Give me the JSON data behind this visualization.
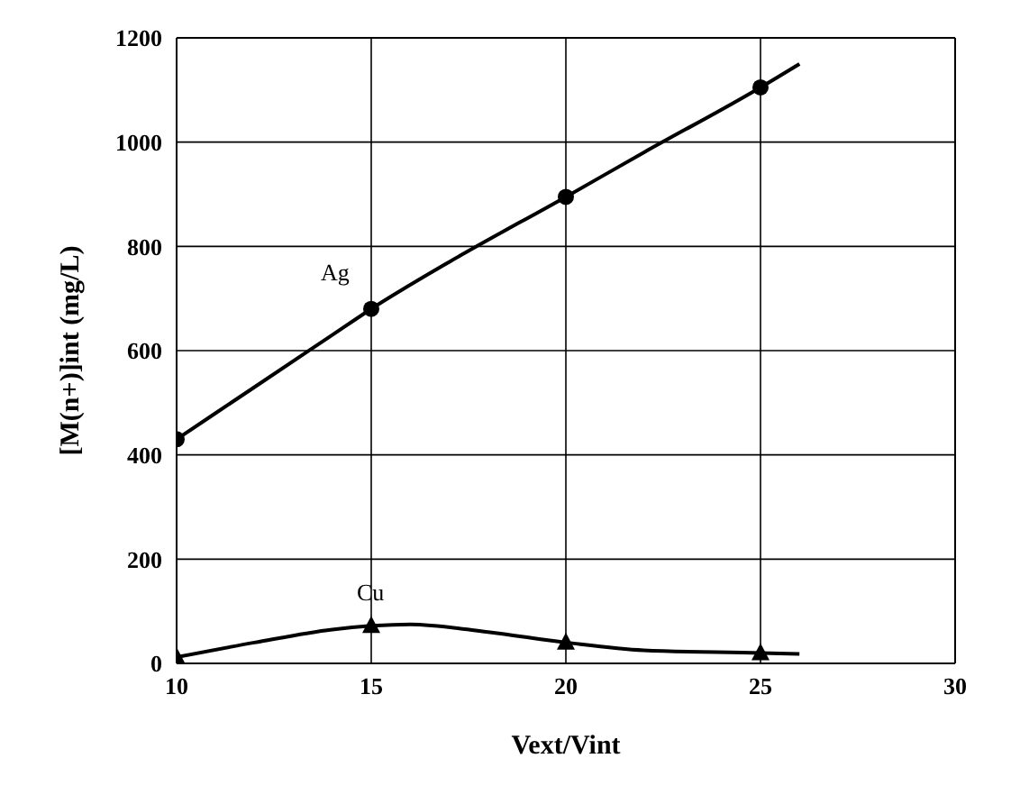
{
  "chart_data": {
    "type": "line",
    "xlabel": "Vext/Vint",
    "ylabel": "[M(n+)]int (mg/L)",
    "xlim": [
      10,
      30
    ],
    "xticks": [
      10,
      15,
      20,
      25,
      30
    ],
    "ylim": [
      0,
      1200
    ],
    "yticks": [
      0,
      200,
      400,
      600,
      800,
      1000,
      1200
    ],
    "grid": true,
    "legend": false,
    "line_style": "solid",
    "series": [
      {
        "name": "Ag",
        "marker": "none",
        "color": "#000000",
        "x": [
          10,
          12,
          14,
          15,
          17,
          20,
          22,
          25,
          26
        ],
        "values": [
          430,
          530,
          630,
          680,
          770,
          895,
          980,
          1105,
          1150
        ]
      },
      {
        "name": "Cu",
        "marker": "none",
        "color": "#000000",
        "x": [
          10,
          12,
          14,
          15,
          16,
          18,
          20,
          22,
          25,
          26
        ],
        "values": [
          12,
          40,
          65,
          72,
          75,
          60,
          40,
          25,
          20,
          18
        ]
      },
      {
        "type": "scatter",
        "marker": "circle",
        "color": "#000000",
        "x": [
          10,
          15,
          20,
          25
        ],
        "values": [
          430,
          680,
          895,
          1105
        ]
      },
      {
        "type": "scatter",
        "marker": "triangle",
        "color": "#000000",
        "x": [
          10,
          15,
          20,
          25
        ],
        "values": [
          12,
          72,
          40,
          20
        ]
      }
    ]
  }
}
